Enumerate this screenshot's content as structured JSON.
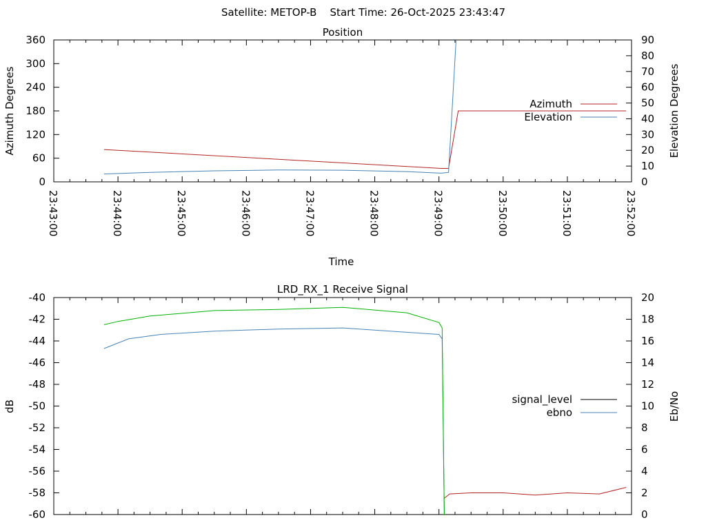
{
  "page_title": "Satellite: METOP-B    Start Time: 26-Oct-2025 23:43:47",
  "chart_data": [
    {
      "type": "line",
      "title": "Position",
      "xlabel": "Time",
      "ylabel": "Azimuth Degrees",
      "y2label": "Elevation Degrees",
      "x_ticks": [
        "23:43:00",
        "23:44:00",
        "23:45:00",
        "23:46:00",
        "23:47:00",
        "23:48:00",
        "23:49:00",
        "23:50:00",
        "23:51:00",
        "23:52:00"
      ],
      "xlim": [
        "23:43:00",
        "23:52:00"
      ],
      "ylim": [
        0,
        360
      ],
      "y_ticks": [
        "0",
        "60",
        "120",
        "180",
        "240",
        "300",
        "360"
      ],
      "y2lim": [
        0,
        90
      ],
      "y2_ticks": [
        "0",
        "10",
        "20",
        "30",
        "40",
        "50",
        "60",
        "70",
        "80",
        "90"
      ],
      "legend_position": "right",
      "series": [
        {
          "name": "Azimuth",
          "axis": "left",
          "color": "#b22222",
          "x": [
            "23:43:47",
            "23:49:02",
            "23:49:09",
            "23:49:18",
            "23:51:55"
          ],
          "y": [
            82,
            34,
            34,
            180,
            180
          ]
        },
        {
          "name": "Elevation",
          "axis": "right",
          "color": "#4682b4",
          "x": [
            "23:43:47",
            "23:44:30",
            "23:45:30",
            "23:46:30",
            "23:47:30",
            "23:48:30",
            "23:49:02",
            "23:49:09",
            "23:49:16"
          ],
          "y": [
            5,
            6,
            7,
            7.5,
            7.4,
            6.5,
            5.5,
            6,
            90
          ]
        }
      ]
    },
    {
      "type": "line",
      "title": "LRD_RX_1 Receive Signal",
      "xlabel": "",
      "ylabel": "dB",
      "y2label": "Eb/No",
      "ylim": [
        -60,
        -40
      ],
      "y_ticks": [
        "-40",
        "-42",
        "-44",
        "-46",
        "-48",
        "-50",
        "-52",
        "-54",
        "-56",
        "-58",
        "-60"
      ],
      "y2lim": [
        0,
        20
      ],
      "y2_ticks": [
        "0",
        "2",
        "4",
        "6",
        "8",
        "10",
        "12",
        "14",
        "16",
        "18",
        "20"
      ],
      "xlim": [
        "23:43:00",
        "23:52:00"
      ],
      "legend_position": "right",
      "series": [
        {
          "name": "signal_level",
          "axis": "left",
          "color": "#000000",
          "x": [],
          "y": []
        },
        {
          "name": "ebno",
          "axis": "right",
          "color": "#4682b4",
          "x": [
            "23:43:47",
            "23:44:10",
            "23:44:40",
            "23:45:30",
            "23:46:30",
            "23:47:30",
            "23:48:30",
            "23:49:00",
            "23:49:03",
            "23:49:05"
          ],
          "y": [
            15.3,
            16.2,
            16.6,
            16.9,
            17.1,
            17.2,
            16.8,
            16.6,
            16.2,
            0
          ]
        },
        {
          "name": "",
          "axis": "left",
          "color": "#00b000",
          "x": [
            "23:43:47",
            "23:44:00",
            "23:44:30",
            "23:45:30",
            "23:46:30",
            "23:47:30",
            "23:48:30",
            "23:49:00",
            "23:49:03",
            "23:49:05"
          ],
          "y": [
            -42.5,
            -42.2,
            -41.7,
            -41.2,
            -41.1,
            -40.9,
            -41.4,
            -42.3,
            -42.8,
            -60
          ]
        },
        {
          "name": "",
          "axis": "left",
          "color": "#b22222",
          "x": [
            "23:49:05",
            "23:49:10",
            "23:49:30",
            "23:50:00",
            "23:50:30",
            "23:51:00",
            "23:51:30",
            "23:51:55"
          ],
          "y": [
            -58.5,
            -58.1,
            -58.0,
            -58.0,
            -58.2,
            -58.0,
            -58.1,
            -57.5
          ]
        }
      ]
    }
  ]
}
